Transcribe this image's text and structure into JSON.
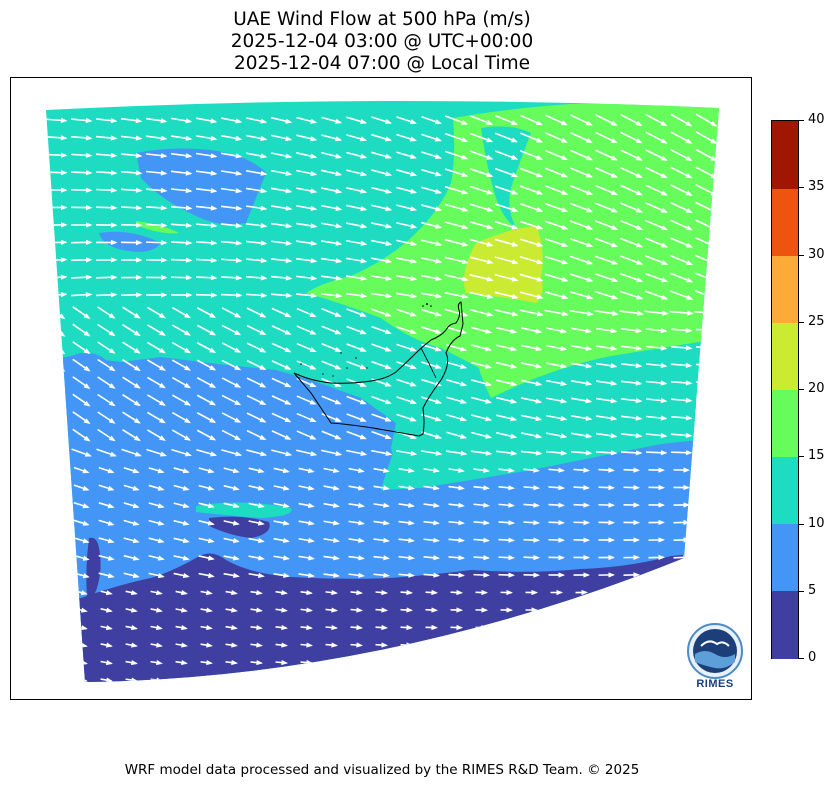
{
  "title": {
    "line1": "UAE Wind Flow at 500 hPa (m/s)",
    "line2": "2025-12-04 03:00 @ UTC+00:00",
    "line3": "2025-12-04 07:00 @ Local Time"
  },
  "colorbar": {
    "min": 0,
    "max": 40,
    "ticks": [
      "0",
      "5",
      "10",
      "15",
      "20",
      "25",
      "30",
      "35",
      "40"
    ],
    "levels": [
      {
        "from": 0,
        "to": 5,
        "color": "#3e3fa0"
      },
      {
        "from": 5,
        "to": 10,
        "color": "#4396f5"
      },
      {
        "from": 10,
        "to": 15,
        "color": "#1edcc1"
      },
      {
        "from": 15,
        "to": 20,
        "color": "#66fc5c"
      },
      {
        "from": 20,
        "to": 25,
        "color": "#cbea32"
      },
      {
        "from": 25,
        "to": 30,
        "color": "#fdab38"
      },
      {
        "from": 30,
        "to": 35,
        "color": "#ec5410"
      },
      {
        "from": 35,
        "to": 40,
        "color": "#a01602"
      }
    ]
  },
  "map": {
    "variable": "wind speed",
    "pressure_level": "500 hPa",
    "arrow_color": "#ffffff",
    "outline_color": "#000000"
  },
  "logo": {
    "text": "RIMES"
  },
  "footer": {
    "credit": "WRF model data processed and visualized by the RIMES R&D Team. © 2025"
  }
}
